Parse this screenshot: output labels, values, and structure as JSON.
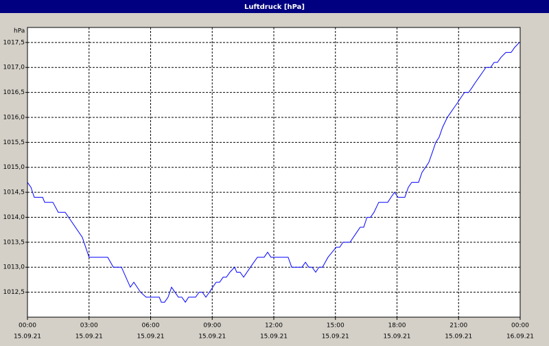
{
  "chart_data": {
    "type": "line",
    "title": "Luftdruck [hPa]",
    "y_unit": "hPa",
    "grid": true,
    "xlim": [
      0,
      24
    ],
    "ylim": [
      1012.0,
      1017.8
    ],
    "xticks": [
      {
        "value": 0,
        "label": "00:00"
      },
      {
        "value": 3,
        "label": "03:00"
      },
      {
        "value": 6,
        "label": "06:00"
      },
      {
        "value": 9,
        "label": "09:00"
      },
      {
        "value": 12,
        "label": "12:00"
      },
      {
        "value": 15,
        "label": "15:00"
      },
      {
        "value": 18,
        "label": "18:00"
      },
      {
        "value": 21,
        "label": "21:00"
      },
      {
        "value": 24,
        "label": "00:00"
      }
    ],
    "xtick_dates": [
      "15.09.21",
      "15.09.21",
      "15.09.21",
      "15.09.21",
      "15.09.21",
      "15.09.21",
      "15.09.21",
      "15.09.21",
      "16.09.21"
    ],
    "yticks": [
      {
        "value": 1012.5,
        "label": "1012,5"
      },
      {
        "value": 1013.0,
        "label": "1013,0"
      },
      {
        "value": 1013.5,
        "label": "1013,5"
      },
      {
        "value": 1014.0,
        "label": "1014,0"
      },
      {
        "value": 1014.5,
        "label": "1014,5"
      },
      {
        "value": 1015.0,
        "label": "1015,0"
      },
      {
        "value": 1015.5,
        "label": "1015,5"
      },
      {
        "value": 1016.0,
        "label": "1016,0"
      },
      {
        "value": 1016.5,
        "label": "1016,5"
      },
      {
        "value": 1017.0,
        "label": "1017,0"
      },
      {
        "value": 1017.5,
        "label": "1017,5"
      }
    ],
    "x": [
      0,
      0.17,
      0.33,
      0.74,
      0.84,
      1.24,
      1.5,
      1.84,
      2.67,
      3.0,
      3.91,
      4.18,
      4.58,
      5.01,
      5.18,
      5.51,
      5.78,
      6.42,
      6.52,
      6.68,
      6.85,
      7.02,
      7.35,
      7.52,
      7.69,
      7.85,
      8.19,
      8.36,
      8.52,
      8.69,
      8.86,
      9.19,
      9.36,
      9.53,
      9.69,
      9.86,
      10.09,
      10.19,
      10.36,
      10.53,
      10.86,
      11.2,
      11.53,
      11.7,
      11.86,
      12.7,
      12.87,
      13.37,
      13.54,
      13.7,
      13.87,
      14.04,
      14.2,
      14.37,
      14.64,
      15.04,
      15.21,
      15.37,
      15.71,
      16.04,
      16.21,
      16.38,
      16.54,
      16.71,
      16.88,
      17.11,
      17.55,
      17.71,
      17.88,
      18.05,
      18.38,
      18.55,
      18.72,
      19.05,
      19.22,
      19.39,
      19.55,
      19.72,
      19.89,
      20.05,
      20.22,
      20.45,
      20.62,
      20.79,
      20.96,
      21.12,
      21.29,
      21.49,
      21.66,
      21.82,
      21.99,
      22.16,
      22.33,
      22.56,
      22.73,
      22.89,
      23.06,
      23.3,
      23.56,
      23.73,
      23.96
    ],
    "series": [
      {
        "name": "Luftdruck",
        "color": "#0000ff",
        "values": [
          1014.7,
          1014.6,
          1014.4,
          1014.4,
          1014.3,
          1014.3,
          1014.1,
          1014.1,
          1013.6,
          1013.2,
          1013.2,
          1013.0,
          1013.0,
          1012.6,
          1012.7,
          1012.5,
          1012.4,
          1012.4,
          1012.3,
          1012.3,
          1012.4,
          1012.6,
          1012.4,
          1012.4,
          1012.3,
          1012.4,
          1012.4,
          1012.5,
          1012.5,
          1012.4,
          1012.5,
          1012.7,
          1012.7,
          1012.8,
          1012.8,
          1012.9,
          1013.0,
          1012.9,
          1012.9,
          1012.8,
          1013.0,
          1013.2,
          1013.2,
          1013.3,
          1013.2,
          1013.2,
          1013.0,
          1013.0,
          1013.1,
          1013.0,
          1013.0,
          1012.9,
          1013.0,
          1013.0,
          1013.2,
          1013.4,
          1013.4,
          1013.5,
          1013.5,
          1013.7,
          1013.8,
          1013.8,
          1014.0,
          1014.0,
          1014.1,
          1014.3,
          1014.3,
          1014.4,
          1014.5,
          1014.4,
          1014.4,
          1014.6,
          1014.7,
          1014.7,
          1014.9,
          1015.0,
          1015.1,
          1015.3,
          1015.5,
          1015.6,
          1015.8,
          1016.0,
          1016.1,
          1016.2,
          1016.3,
          1016.4,
          1016.5,
          1016.5,
          1016.6,
          1016.7,
          1016.8,
          1016.9,
          1017.0,
          1017.0,
          1017.1,
          1017.1,
          1017.2,
          1017.3,
          1017.3,
          1017.4,
          1017.5
        ]
      }
    ]
  }
}
